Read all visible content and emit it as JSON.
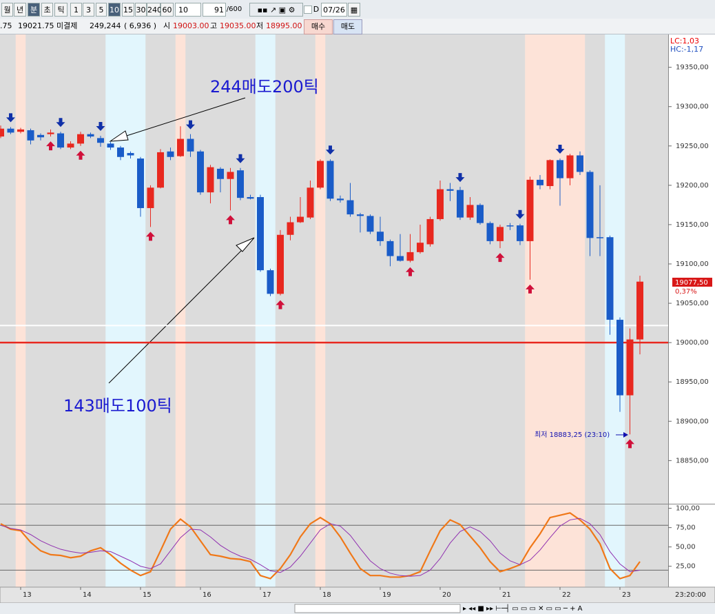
{
  "toolbar": {
    "buttons": [
      "월",
      "년",
      "분",
      "초",
      "틱",
      "1",
      "3",
      "5",
      "10",
      "15",
      "30",
      "240",
      "60"
    ],
    "period": "10",
    "count": "91",
    "count_max": "/600",
    "date_flag": "D",
    "date": "07/26"
  },
  "info_bar": {
    "prev": ".75",
    "price": "19021.75",
    "open_interest_label": "미결제",
    "open_interest": "249,244",
    "oi_change": "( 6,936 )",
    "open_label": "시",
    "open": "19003.00",
    "high_label": "고",
    "high": "19035.00",
    "low_label": "저",
    "low": "18995.00",
    "buy": "매수",
    "sell": "매도"
  },
  "chart_data": {
    "type": "candlestick",
    "categories": [
      null,
      null,
      "13",
      null,
      null,
      null,
      null,
      null,
      "14",
      null,
      null,
      null,
      null,
      null,
      "15",
      null,
      null,
      null,
      null,
      null,
      "16",
      null,
      null,
      null,
      null,
      null,
      "17",
      null,
      null,
      null,
      null,
      null,
      "18",
      null,
      null,
      null,
      null,
      null,
      "19",
      null,
      null,
      null,
      null,
      null,
      "20",
      null,
      null,
      null,
      null,
      null,
      "21",
      null,
      null,
      null,
      null,
      null,
      "22",
      null,
      null,
      null,
      null,
      null,
      "23",
      null,
      null
    ],
    "x_axis_end_label": "23:20:00",
    "open": [
      19262,
      19272,
      19268,
      19270,
      19264,
      19265,
      19266,
      19248,
      19253,
      19265,
      19260,
      19253,
      19248,
      19241,
      19234,
      19171,
      19197,
      19243,
      19237,
      19259,
      19243,
      19191,
      19221,
      19208,
      19219,
      19185,
      19185,
      19092,
      19062,
      19137,
      19153,
      19159,
      19197,
      19231,
      19183,
      19181,
      19163,
      19161,
      19141,
      19129,
      19110,
      19104,
      19115,
      19125,
      19157,
      19195,
      19194,
      19159,
      19175,
      19152,
      19129,
      19149,
      19149,
      19129,
      19207,
      19199,
      19232,
      19209,
      19238,
      19217,
      19134,
      19134,
      19029,
      18933,
      19004
    ],
    "close": [
      19272,
      19267,
      19271,
      19257,
      19261,
      19267,
      19248,
      19253,
      19265,
      19262,
      19254,
      19248,
      19236,
      19238,
      19171,
      19197,
      19242,
      19236,
      19259,
      19243,
      19191,
      19223,
      19208,
      19217,
      19184,
      19183,
      19092,
      19062,
      19137,
      19153,
      19160,
      19197,
      19231,
      19183,
      19181,
      19163,
      19161,
      19141,
      19129,
      19110,
      19104,
      19115,
      19127,
      19157,
      19195,
      19193,
      19159,
      19175,
      19152,
      19129,
      19147,
      19148,
      19129,
      19207,
      19200,
      19232,
      19209,
      19238,
      19217,
      19133,
      19133,
      19029,
      18933,
      19004,
      19077.5
    ],
    "high": [
      19276,
      19274,
      19273,
      19272,
      19266,
      19271,
      19268,
      19256,
      19268,
      19267,
      19263,
      19255,
      19250,
      19243,
      19236,
      19200,
      19246,
      19248,
      19275,
      19265,
      19245,
      19226,
      19223,
      19222,
      19222,
      19188,
      19188,
      19094,
      19143,
      19160,
      19185,
      19206,
      19233,
      19233,
      19187,
      19203,
      19165,
      19163,
      19160,
      19131,
      19138,
      19138,
      19150,
      19160,
      19206,
      19203,
      19198,
      19185,
      19177,
      19154,
      19150,
      19152,
      19151,
      19211,
      19213,
      19233,
      19234,
      19240,
      19243,
      19219,
      19200,
      19136,
      19032,
      19018,
      19085
    ],
    "low": [
      19260,
      19265,
      19266,
      19252,
      19257,
      19262,
      19246,
      19246,
      19250,
      19260,
      19249,
      19245,
      19232,
      19234,
      19160,
      19147,
      19196,
      19232,
      19236,
      19236,
      19188,
      19177,
      19191,
      19168,
      19181,
      19182,
      19090,
      19059,
      19060,
      19130,
      19152,
      19157,
      19195,
      19180,
      19178,
      19160,
      19140,
      19138,
      19123,
      19097,
      19103,
      19102,
      19113,
      19122,
      19155,
      19180,
      19156,
      19156,
      19150,
      19125,
      19120,
      19143,
      19124,
      19080,
      19195,
      19195,
      19174,
      19200,
      19213,
      19110,
      19110,
      19010,
      18912,
      18883.25,
      18985
    ],
    "up_color": "#e8281f",
    "down_color": "#1a5cc8",
    "ylim": [
      18796,
      19390
    ],
    "yticks": [
      {
        "value": 18850,
        "label": "18850,00"
      },
      {
        "value": 18900,
        "label": "18900,00"
      },
      {
        "value": 18950,
        "label": "18950,00"
      },
      {
        "value": 19000,
        "label": "19000,00"
      },
      {
        "value": 19050,
        "label": "19050,00"
      },
      {
        "value": 19100,
        "label": "19100,00"
      },
      {
        "value": 19150,
        "label": "19150,00"
      },
      {
        "value": 19200,
        "label": "19200,00"
      },
      {
        "value": 19250,
        "label": "19250,00"
      },
      {
        "value": 19300,
        "label": "19300,00"
      },
      {
        "value": 19350,
        "label": "19350,00"
      }
    ],
    "hlines": [
      {
        "value": 19021.75,
        "color": "#ffffff"
      },
      {
        "value": 19000,
        "color": "#e8281f"
      }
    ],
    "lc": "LC:1,03",
    "hc": "HC:-1,17",
    "last_price_label": "19077,50",
    "change_label": "0,37%",
    "low_note": "최저 18883,25 (23:10)",
    "annotations": [
      "244매도200틱",
      "143매도100틱"
    ],
    "indicator": {
      "ylim": [
        -2,
        105
      ],
      "yticks": [
        {
          "value": 25,
          "label": "25,00"
        },
        {
          "value": 50,
          "label": "50,00"
        },
        {
          "value": 75,
          "label": "75,00"
        },
        {
          "value": 100,
          "label": "100,00"
        }
      ],
      "levels": [
        78,
        20
      ],
      "series": [
        {
          "color": "#f07818",
          "values": [
            80,
            73,
            71,
            56,
            45,
            40,
            39,
            36,
            38,
            45,
            49,
            40,
            29,
            20,
            13,
            18,
            45,
            73,
            86,
            76,
            58,
            40,
            38,
            35,
            34,
            31,
            13,
            9,
            22,
            40,
            63,
            80,
            88,
            80,
            63,
            42,
            22,
            13,
            13,
            11,
            11,
            13,
            18,
            45,
            71,
            85,
            79,
            64,
            49,
            31,
            18,
            22,
            27,
            49,
            67,
            88,
            91,
            94,
            85,
            73,
            54,
            22,
            9,
            13,
            31
          ]
        },
        {
          "color": "#9030b0",
          "values": [
            78,
            74,
            72,
            66,
            58,
            52,
            47,
            44,
            42,
            43,
            45,
            44,
            38,
            32,
            25,
            22,
            28,
            45,
            62,
            73,
            72,
            63,
            52,
            44,
            38,
            34,
            27,
            19,
            17,
            24,
            38,
            55,
            72,
            80,
            77,
            65,
            48,
            32,
            22,
            16,
            13,
            12,
            13,
            20,
            35,
            55,
            70,
            76,
            70,
            58,
            42,
            32,
            27,
            33,
            46,
            62,
            77,
            85,
            87,
            80,
            66,
            44,
            28,
            18,
            20
          ]
        }
      ]
    }
  }
}
